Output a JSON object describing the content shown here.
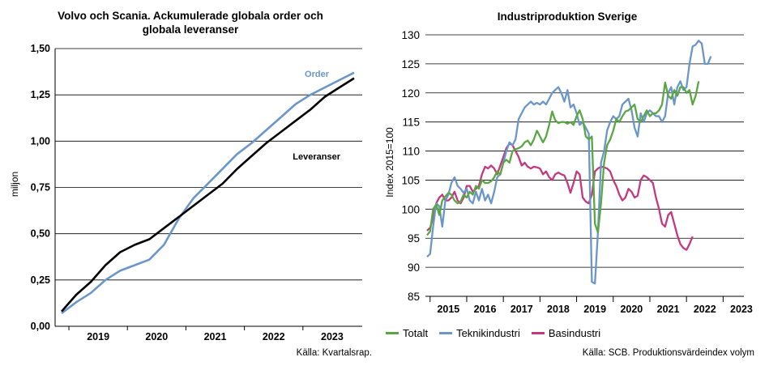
{
  "left": {
    "title": "Volvo och Scania. Ackumulerade globala order och\nglobala leveranser",
    "source": "Källa: Kvartalsrap.",
    "colors": {
      "order": "#6a96c9",
      "leveranser": "#000000"
    },
    "chart_data": {
      "type": "line",
      "title": "Volvo och Scania. Ackumulerade globala order och globala leveranser",
      "ylabel": "miljon",
      "ylim": [
        0,
        1.5
      ],
      "yticks": [
        "0,00",
        "0,25",
        "0,50",
        "0,75",
        "1,00",
        "1,25",
        "1,50"
      ],
      "yticks_values": [
        0,
        0.25,
        0.5,
        0.75,
        1.0,
        1.25,
        1.5
      ],
      "xticks": [
        "2019",
        "2020",
        "2021",
        "2022",
        "2023"
      ],
      "annotations": [
        "Order",
        "Leveranser"
      ],
      "x": [
        "2018Q4",
        "2019Q1",
        "2019Q2",
        "2019Q3",
        "2019Q4",
        "2020Q1",
        "2020Q2",
        "2020Q3",
        "2020Q4",
        "2021Q1",
        "2021Q2",
        "2021Q3",
        "2021Q4",
        "2022Q1",
        "2022Q2",
        "2022Q3",
        "2022Q4",
        "2023Q1",
        "2023Q2",
        "2023Q3",
        "2023Q4"
      ],
      "series": [
        {
          "name": "Order",
          "values": [
            0.07,
            0.13,
            0.18,
            0.25,
            0.3,
            0.33,
            0.36,
            0.44,
            0.58,
            0.69,
            0.77,
            0.85,
            0.93,
            0.99,
            1.06,
            1.13,
            1.2,
            1.25,
            1.29,
            1.33,
            1.37
          ]
        },
        {
          "name": "Leveranser",
          "values": [
            0.08,
            0.17,
            0.24,
            0.33,
            0.4,
            0.44,
            0.47,
            0.53,
            0.59,
            0.65,
            0.71,
            0.77,
            0.85,
            0.92,
            0.99,
            1.05,
            1.11,
            1.17,
            1.24,
            1.29,
            1.34
          ]
        }
      ]
    }
  },
  "right": {
    "title": "Industriproduktion Sverige",
    "source": "Källa: SCB. Produktionsvärdeindex volym",
    "colors": {
      "Totalt": "#5aa642",
      "Teknikindustri": "#6a96c9",
      "Basindustri": "#c4387f"
    },
    "chart_data": {
      "type": "line",
      "title": "Industriproduktion Sverige",
      "ylabel": "Index 2015=100",
      "ylim": [
        85,
        130
      ],
      "yticks": [
        "85",
        "90",
        "95",
        "100",
        "105",
        "110",
        "115",
        "120",
        "125",
        "130"
      ],
      "yticks_values": [
        85,
        90,
        95,
        100,
        105,
        110,
        115,
        120,
        125,
        130
      ],
      "xticks": [
        "2015",
        "2016",
        "2017",
        "2018",
        "2019",
        "2020",
        "2021",
        "2022",
        "2023"
      ],
      "x_start": "2014-12",
      "x_end": "2023-11",
      "series": [
        {
          "name": "Totalt",
          "values": [
            95.5,
            96.2,
            100.0,
            100.8,
            99.0,
            101.5,
            102.2,
            102.8,
            102.5,
            101.5,
            101.0,
            101.3,
            102.5,
            102.0,
            103.0,
            102.5,
            104.0,
            103.5,
            105.0,
            104.5,
            104.5,
            104.8,
            105.5,
            106.5,
            106.0,
            108.0,
            108.5,
            108.0,
            110.0,
            110.3,
            110.5,
            110.8,
            111.5,
            111.8,
            111.0,
            112.0,
            113.5,
            112.5,
            111.5,
            112.5,
            114.5,
            116.8,
            115.3,
            114.8,
            115.0,
            115.0,
            114.7,
            115.0,
            114.5,
            116.0,
            117.0,
            115.5,
            112.5,
            112.0,
            112.5,
            97.5,
            96.0,
            101.0,
            108.0,
            111.0,
            112.0,
            113.5,
            115.5,
            115.0,
            116.0,
            116.8,
            117.0,
            117.5,
            118.0,
            115.5,
            115.0,
            116.0,
            117.0,
            116.0,
            116.5,
            116.5,
            117.0,
            118.0,
            121.8,
            119.5,
            119.0,
            120.5,
            119.5,
            121.0,
            121.0,
            120.0,
            120.5,
            118.0,
            119.5,
            122.0
          ]
        },
        {
          "name": "Teknikindustri",
          "values": [
            91.8,
            92.3,
            97.0,
            101.0,
            100.5,
            97.0,
            101.5,
            102.5,
            104.5,
            105.5,
            104.0,
            103.5,
            102.8,
            103.5,
            101.5,
            101.0,
            103.0,
            101.5,
            103.5,
            101.5,
            102.5,
            101.0,
            103.0,
            105.5,
            106.0,
            108.0,
            110.0,
            111.5,
            111.0,
            112.0,
            115.5,
            116.5,
            117.5,
            118.0,
            118.5,
            118.0,
            118.3,
            118.0,
            118.5,
            118.0,
            119.0,
            120.0,
            120.5,
            121.0,
            120.0,
            118.5,
            120.5,
            117.5,
            118.0,
            116.5,
            114.5,
            115.0,
            114.0,
            113.0,
            87.5,
            87.2,
            96.0,
            108.0,
            110.0,
            113.5,
            115.0,
            116.0,
            115.5,
            116.0,
            118.0,
            118.5,
            119.0,
            117.0,
            114.0,
            112.5,
            116.5,
            115.0,
            116.5,
            117.0,
            116.5,
            116.0,
            116.0,
            115.0,
            116.0,
            120.0,
            121.0,
            118.0,
            121.0,
            122.0,
            120.5,
            121.0,
            125.0,
            128.0,
            128.3,
            129.0,
            128.5,
            125.0,
            125.0,
            126.3
          ]
        },
        {
          "name": "Basindustri",
          "values": [
            96.3,
            96.8,
            98.5,
            101.0,
            102.0,
            102.5,
            101.5,
            101.5,
            102.0,
            103.0,
            101.5,
            101.0,
            102.0,
            104.0,
            104.0,
            103.0,
            103.5,
            104.0,
            106.0,
            107.3,
            107.0,
            107.5,
            107.0,
            106.0,
            107.5,
            109.0,
            110.5,
            111.3,
            111.0,
            110.0,
            109.0,
            107.5,
            108.0,
            107.3,
            107.0,
            107.3,
            107.2,
            107.0,
            106.0,
            106.5,
            105.5,
            105.0,
            106.0,
            106.3,
            106.0,
            105.8,
            104.5,
            102.8,
            104.5,
            106.5,
            106.0,
            102.0,
            101.3,
            101.0,
            102.5,
            106.5,
            107.0,
            107.3,
            107.2,
            107.0,
            106.5,
            105.0,
            104.0,
            102.5,
            101.5,
            102.0,
            103.5,
            103.0,
            102.0,
            102.3,
            105.0,
            105.8,
            105.5,
            105.0,
            104.5,
            102.0,
            100.0,
            97.5,
            97.0,
            99.0,
            99.5,
            97.5,
            95.5,
            94.0,
            93.3,
            93.0,
            94.0,
            95.3
          ]
        }
      ]
    }
  }
}
